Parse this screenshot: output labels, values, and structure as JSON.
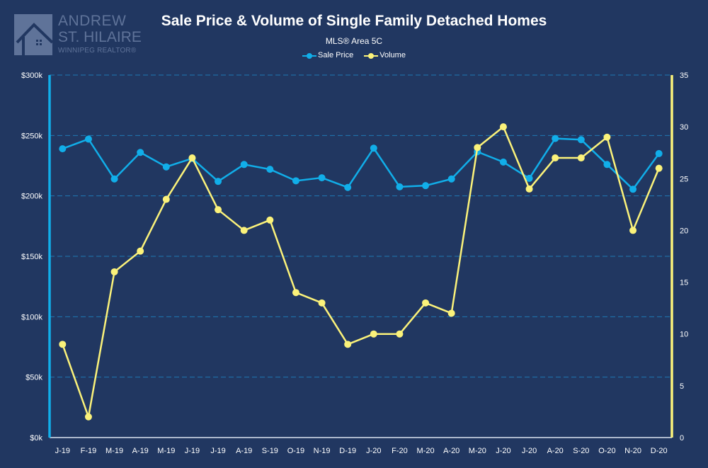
{
  "branding": {
    "name_line1": "ANDREW",
    "name_line2": "ST. HILAIRE",
    "tagline": "WINNIPEG REALTOR®",
    "logo_icon": "house-icon"
  },
  "colors": {
    "background": "#213761",
    "sale_price": "#11aee9",
    "volume": "#fbf27a",
    "grid": "#1f78b4",
    "logo": "#5f7399"
  },
  "chart_data": {
    "type": "line",
    "title": "Sale Price & Volume of Single Family Detached Homes",
    "subtitle": "MLS® Area 5C",
    "legend_position": "top-center",
    "categories": [
      "J-19",
      "F-19",
      "M-19",
      "A-19",
      "M-19",
      "J-19",
      "J-19",
      "A-19",
      "S-19",
      "O-19",
      "N-19",
      "D-19",
      "J-20",
      "F-20",
      "M-20",
      "A-20",
      "M-20",
      "J-20",
      "J-20",
      "A-20",
      "S-20",
      "O-20",
      "N-20",
      "D-20"
    ],
    "series": [
      {
        "name": "Sale Price",
        "axis": "left",
        "values": [
          239000,
          247000,
          214000,
          236000,
          224000,
          231000,
          212000,
          226000,
          222000,
          212500,
          215000,
          207000,
          239500,
          207500,
          208500,
          214000,
          236500,
          228000,
          214500,
          247500,
          246500,
          226000,
          205500,
          235000
        ]
      },
      {
        "name": "Volume",
        "axis": "right",
        "values": [
          9,
          2,
          16,
          18,
          23,
          27,
          22,
          20,
          21,
          14,
          13,
          9,
          10,
          10,
          13,
          12,
          28,
          30,
          24,
          27,
          27,
          29,
          20,
          26
        ]
      }
    ],
    "y_left": {
      "ylim": [
        0,
        300000
      ],
      "ticks": [
        0,
        50000,
        100000,
        150000,
        200000,
        250000,
        300000
      ],
      "tick_labels": [
        "$0k",
        "$50k",
        "$100k",
        "$150k",
        "$200k",
        "$250k",
        "$300k"
      ]
    },
    "y_right": {
      "ylim": [
        0,
        35
      ],
      "ticks": [
        0,
        5,
        10,
        15,
        20,
        25,
        30,
        35
      ],
      "tick_labels": [
        "0",
        "5",
        "10",
        "15",
        "20",
        "25",
        "30",
        "35"
      ]
    },
    "grid": true,
    "xlabel": "",
    "ylabel": ""
  }
}
